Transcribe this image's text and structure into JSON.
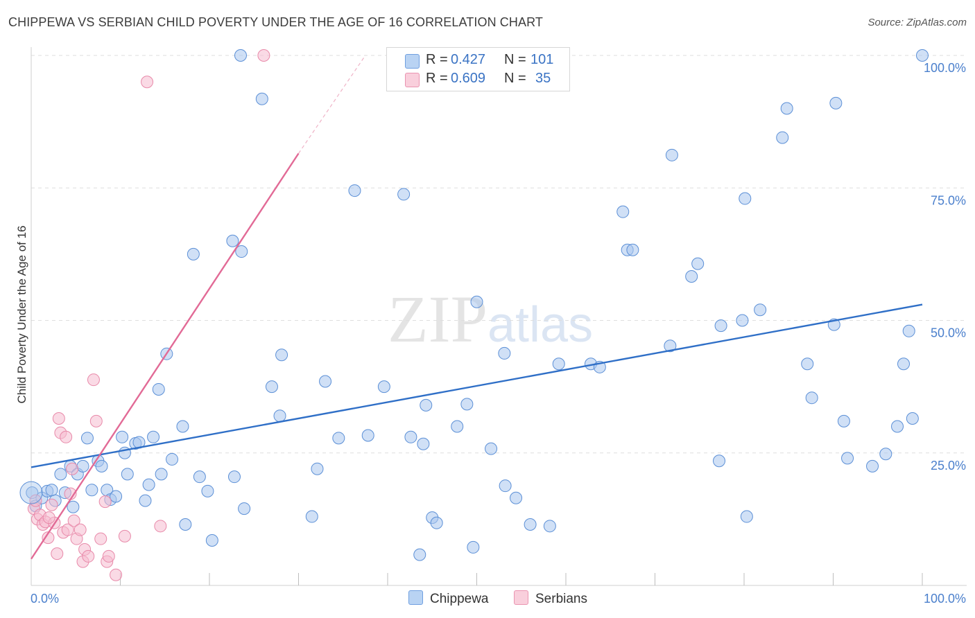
{
  "title": "CHIPPEWA VS SERBIAN CHILD POVERTY UNDER THE AGE OF 16 CORRELATION CHART",
  "source": "Source: ZipAtlas.com",
  "watermark": "ZIPatlas",
  "colors": {
    "chippewa_fill": "#a9c7ee",
    "chippewa_stroke": "#5b8fd6",
    "chippewa_line": "#2f6fc7",
    "serbians_fill": "#f6bcd0",
    "serbians_stroke": "#e889a9",
    "serbians_line": "#e26a96",
    "axis_text": "#4a7fcc"
  },
  "legend": {
    "rows": [
      {
        "r_label": "R =",
        "r_value": "0.427",
        "n_label": "N =",
        "n_value": "101"
      },
      {
        "r_label": "R =",
        "r_value": "0.609",
        "n_label": "N =",
        "n_value": "35"
      }
    ],
    "bottom": [
      "Chippewa",
      "Serbians"
    ]
  },
  "chart_data": {
    "type": "scatter",
    "title": "CHIPPEWA VS SERBIAN CHILD POVERTY UNDER THE AGE OF 16 CORRELATION CHART",
    "xlabel": "",
    "ylabel": "Child Poverty Under the Age of 16",
    "xlim": [
      0,
      100
    ],
    "ylim": [
      0,
      100
    ],
    "x_tick_labels": [
      "0.0%",
      "100.0%"
    ],
    "y_tick_labels": [
      "100.0%",
      "75.0%",
      "50.0%",
      "25.0%"
    ],
    "y_ticks": [
      100,
      75,
      50,
      25
    ],
    "grid": true,
    "legend_position": "top-center",
    "series": [
      {
        "name": "Chippewa",
        "r": 0.427,
        "n": 101,
        "trend": {
          "x": [
            0,
            100
          ],
          "y": [
            22.3,
            53.0
          ]
        },
        "points": [
          [
            0.1,
            17.5
          ],
          [
            0.5,
            15.0
          ],
          [
            1.2,
            16.5
          ],
          [
            1.8,
            17.8
          ],
          [
            2.3,
            18.0
          ],
          [
            2.7,
            16.0
          ],
          [
            3.3,
            21.0
          ],
          [
            3.8,
            17.5
          ],
          [
            4.4,
            22.5
          ],
          [
            4.7,
            14.8
          ],
          [
            5.2,
            21.0
          ],
          [
            5.8,
            22.5
          ],
          [
            6.3,
            27.8
          ],
          [
            6.8,
            18.0
          ],
          [
            7.5,
            23.5
          ],
          [
            7.9,
            22.5
          ],
          [
            8.5,
            18.0
          ],
          [
            8.9,
            16.2
          ],
          [
            9.5,
            16.8
          ],
          [
            10.2,
            28.0
          ],
          [
            10.5,
            25.0
          ],
          [
            10.8,
            21.0
          ],
          [
            11.7,
            26.8
          ],
          [
            12.1,
            27.0
          ],
          [
            12.8,
            16.0
          ],
          [
            13.2,
            19.0
          ],
          [
            13.7,
            28.0
          ],
          [
            14.3,
            37.0
          ],
          [
            14.6,
            21.0
          ],
          [
            15.2,
            43.7
          ],
          [
            15.8,
            23.8
          ],
          [
            17.0,
            30.0
          ],
          [
            17.3,
            11.5
          ],
          [
            18.2,
            62.5
          ],
          [
            18.9,
            20.5
          ],
          [
            19.8,
            17.8
          ],
          [
            20.3,
            8.5
          ],
          [
            22.6,
            65.0
          ],
          [
            22.8,
            20.5
          ],
          [
            23.6,
            63.0
          ],
          [
            23.9,
            14.5
          ],
          [
            23.5,
            100.0
          ],
          [
            25.9,
            91.8
          ],
          [
            27.0,
            37.5
          ],
          [
            27.9,
            32.0
          ],
          [
            28.1,
            43.5
          ],
          [
            31.5,
            13.0
          ],
          [
            32.1,
            22.0
          ],
          [
            33.0,
            38.5
          ],
          [
            34.5,
            27.8
          ],
          [
            36.3,
            74.5
          ],
          [
            37.8,
            28.3
          ],
          [
            39.6,
            37.5
          ],
          [
            41.8,
            73.8
          ],
          [
            42.6,
            28.0
          ],
          [
            43.6,
            5.8
          ],
          [
            44.0,
            26.7
          ],
          [
            44.3,
            34.0
          ],
          [
            45.0,
            12.8
          ],
          [
            45.5,
            11.8
          ],
          [
            47.8,
            30.0
          ],
          [
            48.9,
            34.2
          ],
          [
            49.6,
            7.2
          ],
          [
            50.0,
            53.5
          ],
          [
            51.6,
            25.8
          ],
          [
            53.1,
            43.8
          ],
          [
            53.2,
            18.8
          ],
          [
            54.4,
            16.5
          ],
          [
            56.0,
            11.5
          ],
          [
            58.2,
            11.2
          ],
          [
            59.2,
            41.8
          ],
          [
            62.8,
            41.8
          ],
          [
            63.8,
            41.2
          ],
          [
            66.4,
            70.5
          ],
          [
            66.9,
            63.3
          ],
          [
            67.5,
            63.3
          ],
          [
            71.7,
            45.2
          ],
          [
            71.9,
            81.2
          ],
          [
            74.1,
            58.3
          ],
          [
            74.8,
            60.7
          ],
          [
            77.2,
            23.5
          ],
          [
            77.4,
            49.0
          ],
          [
            79.8,
            50.0
          ],
          [
            80.1,
            73.0
          ],
          [
            80.3,
            13.0
          ],
          [
            81.8,
            52.0
          ],
          [
            84.3,
            84.5
          ],
          [
            84.8,
            90.0
          ],
          [
            87.1,
            41.8
          ],
          [
            87.6,
            35.4
          ],
          [
            90.1,
            49.2
          ],
          [
            90.3,
            91.0
          ],
          [
            91.2,
            31.0
          ],
          [
            91.6,
            24.0
          ],
          [
            94.4,
            22.5
          ],
          [
            95.9,
            24.8
          ],
          [
            97.2,
            30.0
          ],
          [
            97.9,
            41.8
          ],
          [
            98.5,
            48.0
          ],
          [
            98.9,
            31.5
          ],
          [
            100.0,
            100.0
          ]
        ]
      },
      {
        "name": "Serbians",
        "r": 0.609,
        "n": 35,
        "trend": {
          "x": [
            0,
            30.0
          ],
          "y": [
            5.0,
            81.5
          ]
        },
        "trend_dashed": {
          "x": [
            30.0,
            37.5
          ],
          "y": [
            81.5,
            100.0
          ]
        },
        "points": [
          [
            0.3,
            14.5
          ],
          [
            0.7,
            12.5
          ],
          [
            1.0,
            13.3
          ],
          [
            1.3,
            11.5
          ],
          [
            1.6,
            12.0
          ],
          [
            1.9,
            9.0
          ],
          [
            2.3,
            15.2
          ],
          [
            2.6,
            11.8
          ],
          [
            2.9,
            6.0
          ],
          [
            3.1,
            31.5
          ],
          [
            3.3,
            28.8
          ],
          [
            3.6,
            10.0
          ],
          [
            3.9,
            28.0
          ],
          [
            4.1,
            10.5
          ],
          [
            4.4,
            17.3
          ],
          [
            4.6,
            22.0
          ],
          [
            4.8,
            12.2
          ],
          [
            5.1,
            8.8
          ],
          [
            5.5,
            10.5
          ],
          [
            5.8,
            4.5
          ],
          [
            6.0,
            6.8
          ],
          [
            6.4,
            5.5
          ],
          [
            7.0,
            38.8
          ],
          [
            7.3,
            31.0
          ],
          [
            7.8,
            8.8
          ],
          [
            8.3,
            15.8
          ],
          [
            8.5,
            4.5
          ],
          [
            8.7,
            5.5
          ],
          [
            9.5,
            2.0
          ],
          [
            10.5,
            9.3
          ],
          [
            13.0,
            95.0
          ],
          [
            14.5,
            11.2
          ],
          [
            26.1,
            100.0
          ],
          [
            0.5,
            16.0
          ],
          [
            2.0,
            12.8
          ]
        ]
      }
    ]
  }
}
